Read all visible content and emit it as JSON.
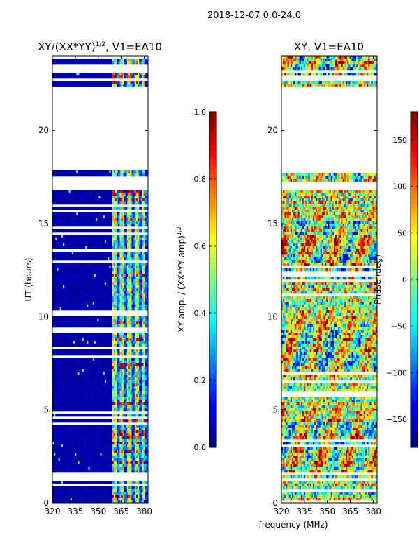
{
  "figure_title": "2018-12-07 0.0-24.0",
  "shared_xlabel": "frequency (MHz)",
  "chart_data": [
    {
      "type": "heatmap",
      "title": "XY/(XX*YY)",
      "title_exponent": "1/2",
      "title_suffix": ", V1=EA10",
      "xlabel": "",
      "ylabel": "UT (hours)",
      "xlim": [
        320,
        382.5
      ],
      "ylim": [
        0,
        24
      ],
      "x_ticks": [
        320,
        335,
        350,
        365,
        380
      ],
      "y_ticks": [
        0,
        5,
        10,
        15,
        20
      ],
      "colormap": "jet",
      "colorbar": {
        "label": "XY amp. / (XX*YY amp)",
        "label_exponent": "1/2",
        "range": [
          0.0,
          1.0
        ],
        "ticks": [
          "0.0",
          "0.2",
          "0.4",
          "0.6",
          "0.8",
          "1.0"
        ]
      },
      "data_gaps_hours": [
        [
          1.2,
          1.6
        ],
        [
          17.0,
          17.6
        ],
        [
          17.8,
          22.3
        ],
        [
          22.6,
          22.8
        ],
        [
          23.1,
          23.3
        ]
      ],
      "rfi_freq_bands_mhz": [
        [
          359,
          362
        ],
        [
          364,
          366.5
        ],
        [
          369,
          371.5
        ],
        [
          374,
          376.5
        ],
        [
          378.5,
          381
        ]
      ],
      "notes": "Amplitude ~0 (dark blue) below 359 MHz; elevated values in narrow RFI bands above 359 MHz"
    },
    {
      "type": "heatmap",
      "title": "XY, V1=EA10",
      "xlabel": "",
      "ylabel": "",
      "xlim": [
        320,
        382.5
      ],
      "ylim": [
        0,
        24
      ],
      "x_ticks": [
        320,
        335,
        350,
        365,
        380
      ],
      "y_ticks": [
        0,
        5,
        10,
        15,
        20
      ],
      "colormap": "jet",
      "colorbar": {
        "label": "Phase (deg)",
        "range": [
          -180,
          180
        ],
        "ticks": [
          "−150",
          "−100",
          "−50",
          "0",
          "50",
          "100",
          "150"
        ]
      },
      "data_gaps_hours": [
        [
          17.8,
          22.3
        ],
        [
          17.0,
          17.2
        ],
        [
          22.6,
          22.8
        ],
        [
          23.1,
          23.3
        ]
      ],
      "notes": "Noisy phase, predominantly warm (positive) with cyan/blue streaks"
    }
  ]
}
